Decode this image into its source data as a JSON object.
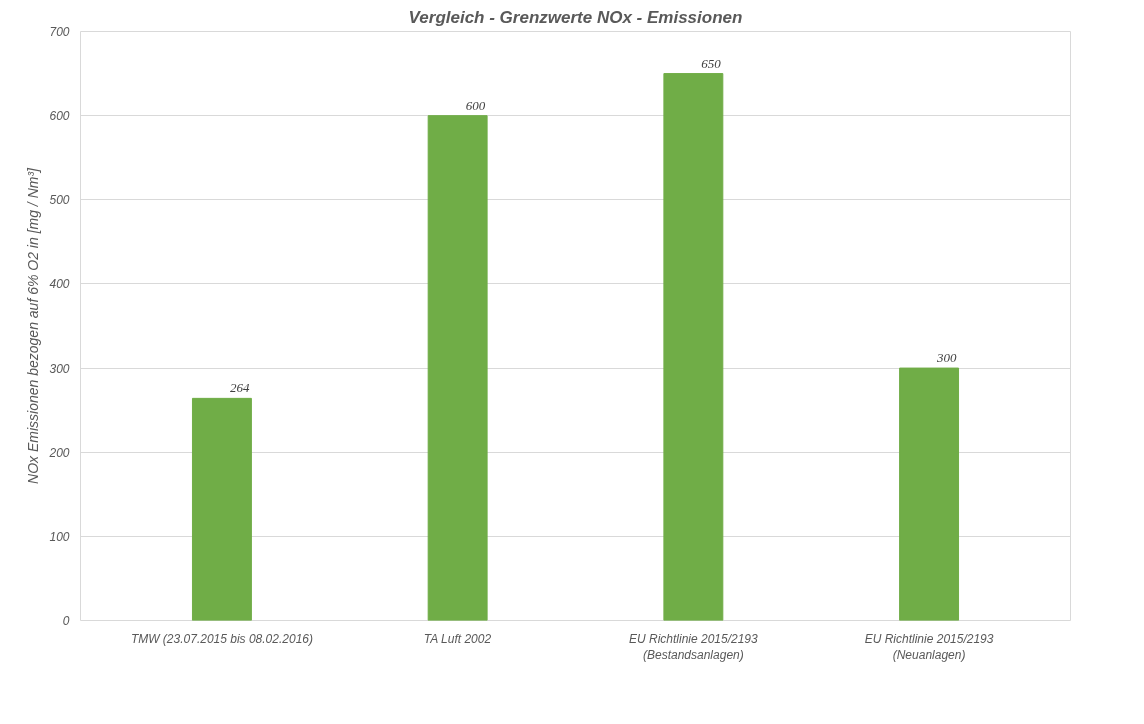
{
  "chart_data": {
    "type": "bar",
    "title": "Vergleich - Grenzwerte NOx - Emissionen",
    "ylabel": "NOx Emissionen bezogen auf 6% O2 in [mg / Nm³]",
    "categories": [
      "TMW (23.07.2015 bis 08.02.2016)",
      "TA Luft 2002",
      "EU Richtlinie 2015/2193\n(Bestandsanlagen)",
      "EU Richtlinie 2015/2193\n(Neuanlagen)"
    ],
    "values": [
      264,
      600,
      650,
      300
    ],
    "color": "#70ad47",
    "ylim": [
      0,
      700
    ],
    "yticks": [
      0,
      100,
      200,
      300,
      400,
      500,
      600,
      700
    ],
    "grid": "y",
    "data_labels": true
  }
}
